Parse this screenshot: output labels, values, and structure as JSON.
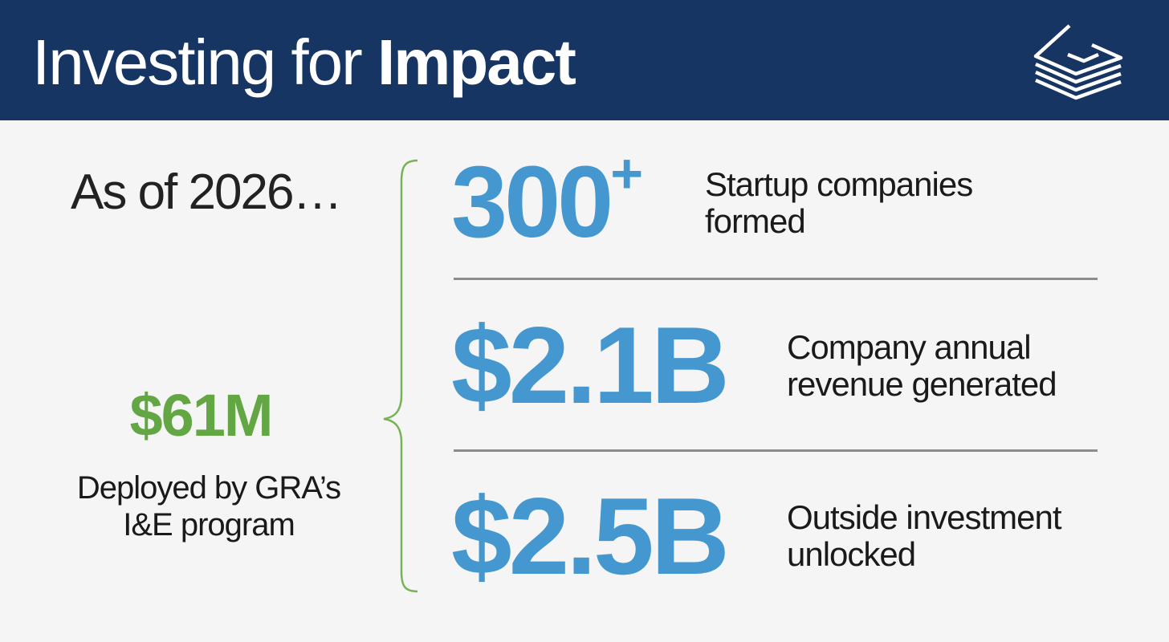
{
  "header": {
    "title_light": "Investing for",
    "title_bold": "Impact",
    "background_color": "#163562",
    "logo_icon": "stacked-layers-logo"
  },
  "intro": {
    "as_of": "As of 2026…"
  },
  "summary": {
    "amount": "$61M",
    "amount_color": "#63a744",
    "desc_line1": "Deployed by GRA’s",
    "desc_line2": "I&E program"
  },
  "stats": [
    {
      "value": "300",
      "suffix": "+",
      "desc_line1": "Startup companies",
      "desc_line2": "formed"
    },
    {
      "value": "$2.1B",
      "suffix": "",
      "desc_line1": "Company annual",
      "desc_line2": "revenue generated"
    },
    {
      "value": "$2.5B",
      "suffix": "",
      "desc_line1": "Outside investment",
      "desc_line2": "unlocked"
    }
  ],
  "accent_color": "#4598cf"
}
